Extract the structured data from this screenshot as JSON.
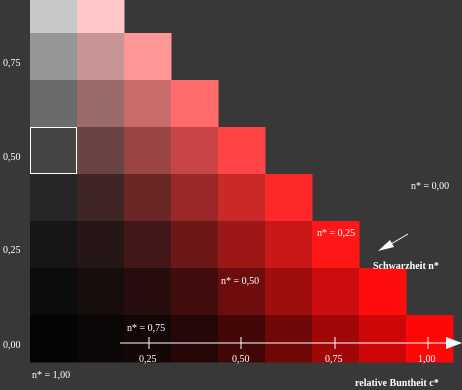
{
  "y_axis": {
    "ticks": [
      {
        "value": 0.75,
        "label": "0,75"
      },
      {
        "value": 0.5,
        "label": "0,50"
      },
      {
        "value": 0.25,
        "label": "0,25"
      },
      {
        "value": 0.0,
        "label": "0,00"
      }
    ]
  },
  "x_axis": {
    "title": "relative Buntheit c*",
    "ticks": [
      {
        "value": 0.25,
        "label": "0,25"
      },
      {
        "value": 0.5,
        "label": "0,50"
      },
      {
        "value": 0.75,
        "label": "0,75"
      },
      {
        "value": 1.0,
        "label": "1,00"
      }
    ]
  },
  "blackness_axis": {
    "title": "Schwarzheit n*",
    "labels": [
      {
        "value": 0.0,
        "label": "n* = 0,00"
      },
      {
        "value": 0.25,
        "label": "n* = 0,25"
      },
      {
        "value": 0.5,
        "label": "n* = 0,50"
      },
      {
        "value": 0.75,
        "label": "n* = 0,75"
      },
      {
        "value": 1.0,
        "label": "n* = 1,00"
      }
    ]
  },
  "grid": {
    "columns": 9,
    "rows_in_gray_column": 8,
    "selected_gray_patch": 3,
    "colors": [
      [
        "#c8c8c8",
        "#969696",
        "#6b6b6b",
        "#454545",
        "#262626",
        "#161616",
        "#0c0c0c",
        "#040404"
      ],
      [
        "#ffc7c7",
        "#c99494",
        "#9b6a6a",
        "#6a4444",
        "#402525",
        "#261616",
        "#170d0d",
        "#0c0707"
      ],
      [
        "#ff9696",
        "#c86b6b",
        "#9b4545",
        "#6b2626",
        "#411717",
        "#260e0e",
        "#140707"
      ],
      [
        "#ff6b6b",
        "#c84545",
        "#9b2828",
        "#6e1717",
        "#420d0d",
        "#260707"
      ],
      [
        "#ff4545",
        "#cb2828",
        "#9e1717",
        "#6e0d0d",
        "#420707"
      ],
      [
        "#ff2828",
        "#cb1717",
        "#a00d0d",
        "#700707"
      ],
      [
        "#ff1717",
        "#cb0d0d",
        "#a00707"
      ],
      [
        "#ff0d0d",
        "#cd0707"
      ],
      [
        "#ff0707"
      ]
    ]
  }
}
